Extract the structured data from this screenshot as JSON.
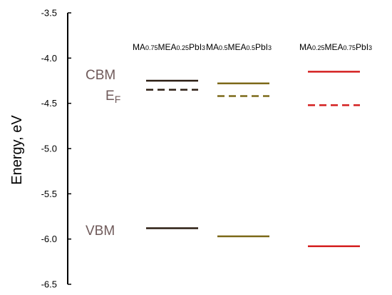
{
  "chart_data": {
    "type": "energy-level diagram",
    "ylabel": "Energy, eV",
    "ylim": [
      -6.5,
      -3.5
    ],
    "yticks": [
      "-3.5",
      "-4.0",
      "-4.5",
      "-5.0",
      "-5.5",
      "-6.0",
      "-6.5"
    ],
    "level_labels": {
      "cbm": "CBM",
      "ef_main": "E",
      "ef_sub": "F",
      "vbm": "VBM"
    },
    "columns": [
      {
        "label_parts": [
          [
            "MA",
            ""
          ],
          [
            "0.75",
            "sub"
          ],
          [
            "MEA",
            ""
          ],
          [
            "0.25",
            "sub"
          ],
          [
            "PbI",
            ""
          ],
          [
            "3",
            "sub"
          ]
        ],
        "cbm": -4.25,
        "ef": -4.35,
        "vbm": -5.88,
        "color": "#2b1d12"
      },
      {
        "label_parts": [
          [
            "MA",
            ""
          ],
          [
            "0.5",
            "sub"
          ],
          [
            "MEA",
            ""
          ],
          [
            "0.5",
            "sub"
          ],
          [
            "PbI",
            ""
          ],
          [
            "3",
            "sub"
          ]
        ],
        "cbm": -4.28,
        "ef": -4.42,
        "vbm": -5.97,
        "color": "#7d6a1a"
      },
      {
        "label_parts": [
          [
            "MA",
            ""
          ],
          [
            "0.25",
            "sub"
          ],
          [
            "MEA",
            ""
          ],
          [
            "0.75",
            "sub"
          ],
          [
            "PbI",
            ""
          ],
          [
            "3",
            "sub"
          ]
        ],
        "cbm": -4.15,
        "ef": -4.52,
        "vbm": -6.08,
        "color": "#d42020"
      }
    ]
  }
}
